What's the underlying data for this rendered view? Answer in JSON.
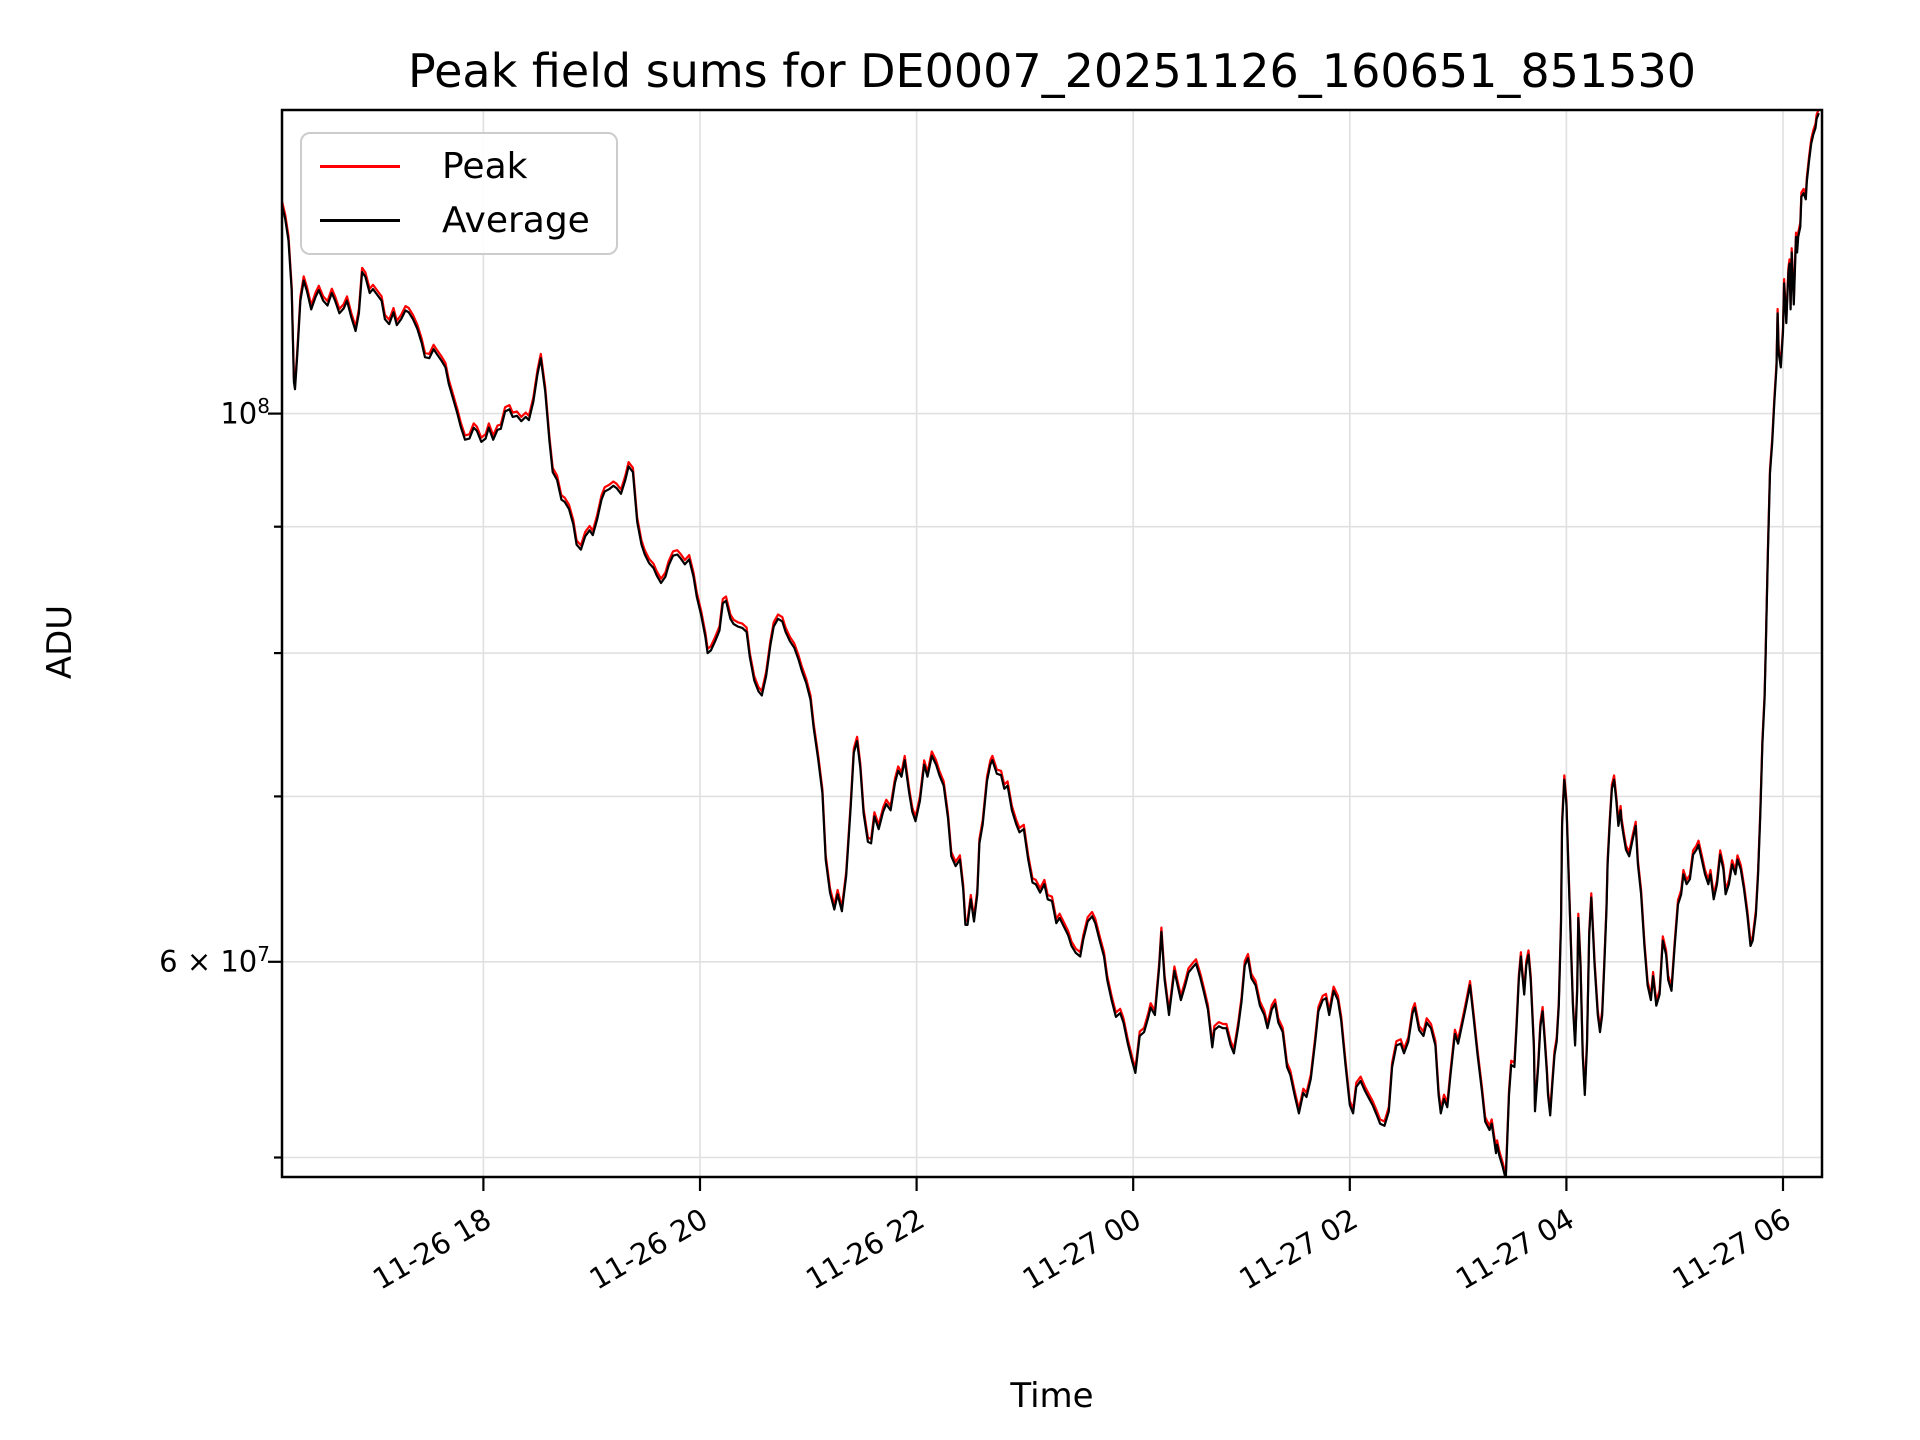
{
  "title": "Peak field sums for DE0007_20251126_160651_851530",
  "axes": {
    "xlabel": "Time",
    "ylabel": "ADU",
    "x_ticks": [
      {
        "hour": 18,
        "label": "11-26 18"
      },
      {
        "hour": 20,
        "label": "11-26 20"
      },
      {
        "hour": 22,
        "label": "11-26 22"
      },
      {
        "hour": 24,
        "label": "11-27 00"
      },
      {
        "hour": 26,
        "label": "11-27 02"
      },
      {
        "hour": 28,
        "label": "11-27 04"
      },
      {
        "hour": 30,
        "label": "11-27 06"
      }
    ],
    "y_ticks_major": [
      {
        "value": 10,
        "prefix": "",
        "mantissa": "10",
        "exponent": "8"
      },
      {
        "value": 6,
        "prefix": "6 × ",
        "mantissa": "10",
        "exponent": "7"
      }
    ],
    "y_ticks_minor": [
      9,
      8,
      7,
      5
    ],
    "y_gridlines": [
      10,
      9,
      8,
      7,
      6,
      5
    ]
  },
  "legend": {
    "entries": [
      {
        "label": "Peak",
        "color": "#ff0000"
      },
      {
        "label": "Average",
        "color": "#000000"
      }
    ]
  },
  "colors": {
    "peak": "#ff0000",
    "average": "#000000",
    "grid": "#e0e0e0",
    "legend_border": "#cccccc"
  },
  "chart_data": {
    "type": "line",
    "title": "Peak field sums for DE0007_20251126_160651_851530",
    "xlabel": "Time",
    "ylabel": "ADU",
    "x_unit": "hours since 2025-11-26 00:00 (24+ = 11-27)",
    "y_unit": "1e7 ADU, log scale",
    "xlim": [
      16.14,
      30.36
    ],
    "ylim": [
      4.91,
      13.27
    ],
    "grid": "both",
    "legend_position": "upper left",
    "x_hours": [
      16.14,
      16.17,
      16.2,
      16.23,
      16.25,
      16.26,
      16.28,
      16.31,
      16.34,
      16.37,
      16.41,
      16.45,
      16.48,
      16.52,
      16.56,
      16.6,
      16.63,
      16.67,
      16.71,
      16.74,
      16.78,
      16.82,
      16.85,
      16.88,
      16.91,
      16.95,
      16.98,
      17.02,
      17.06,
      17.09,
      17.13,
      17.17,
      17.2,
      17.24,
      17.28,
      17.31,
      17.35,
      17.39,
      17.43,
      17.46,
      17.5,
      17.54,
      17.57,
      17.61,
      17.65,
      17.68,
      17.72,
      17.76,
      17.79,
      17.83,
      17.87,
      17.91,
      17.94,
      17.98,
      18.02,
      18.05,
      18.09,
      18.13,
      18.16,
      18.2,
      18.24,
      18.27,
      18.31,
      18.35,
      18.39,
      18.42,
      18.46,
      18.5,
      18.53,
      18.57,
      18.61,
      18.64,
      18.68,
      18.72,
      18.75,
      18.79,
      18.83,
      18.86,
      18.9,
      18.94,
      18.98,
      19.01,
      19.05,
      19.09,
      19.12,
      19.16,
      19.2,
      19.23,
      19.27,
      19.31,
      19.34,
      19.38,
      19.42,
      19.46,
      19.49,
      19.53,
      19.57,
      19.6,
      19.64,
      19.68,
      19.71,
      19.75,
      19.79,
      19.82,
      19.86,
      19.9,
      19.94,
      19.97,
      20.01,
      20.05,
      20.07,
      20.1,
      20.14,
      20.18,
      20.21,
      20.24,
      20.28,
      20.31,
      20.35,
      20.39,
      20.43,
      20.46,
      20.5,
      20.54,
      20.57,
      20.61,
      20.65,
      20.68,
      20.72,
      20.76,
      20.79,
      20.83,
      20.87,
      20.91,
      20.94,
      20.98,
      21.02,
      21.05,
      21.09,
      21.13,
      21.16,
      21.2,
      21.24,
      21.27,
      21.31,
      21.35,
      21.39,
      21.42,
      21.45,
      21.48,
      21.51,
      21.55,
      21.58,
      21.61,
      21.65,
      21.69,
      21.72,
      21.76,
      21.8,
      21.83,
      21.86,
      21.89,
      21.93,
      21.96,
      21.99,
      22.03,
      22.07,
      22.1,
      22.14,
      22.18,
      22.21,
      22.25,
      22.29,
      22.32,
      22.36,
      22.4,
      22.43,
      22.45,
      22.47,
      22.5,
      22.53,
      22.56,
      22.58,
      22.61,
      22.65,
      22.68,
      22.7,
      22.74,
      22.78,
      22.81,
      22.84,
      22.88,
      22.92,
      22.95,
      22.99,
      23.03,
      23.07,
      23.1,
      23.14,
      23.18,
      23.21,
      23.25,
      23.29,
      23.32,
      23.36,
      23.4,
      23.43,
      23.47,
      23.51,
      23.54,
      23.58,
      23.62,
      23.65,
      23.69,
      23.73,
      23.76,
      23.8,
      23.84,
      23.88,
      23.91,
      23.95,
      23.99,
      24.02,
      24.06,
      24.1,
      24.14,
      24.16,
      24.2,
      24.24,
      24.26,
      24.29,
      24.33,
      24.36,
      24.38,
      24.41,
      24.44,
      24.48,
      24.51,
      24.55,
      24.58,
      24.62,
      24.65,
      24.69,
      24.73,
      24.75,
      24.79,
      24.83,
      24.86,
      24.9,
      24.93,
      24.97,
      25.0,
      25.03,
      25.06,
      25.09,
      25.13,
      25.17,
      25.21,
      25.24,
      25.28,
      25.31,
      25.34,
      25.38,
      25.42,
      25.45,
      25.49,
      25.53,
      25.57,
      25.6,
      25.64,
      25.68,
      25.71,
      25.75,
      25.78,
      25.81,
      25.85,
      25.89,
      25.92,
      25.96,
      26.0,
      26.03,
      26.06,
      26.1,
      26.14,
      26.17,
      26.21,
      26.25,
      26.28,
      26.32,
      26.36,
      26.39,
      26.43,
      26.47,
      26.5,
      26.54,
      26.58,
      26.6,
      26.64,
      26.68,
      26.71,
      26.75,
      26.79,
      26.82,
      26.84,
      26.87,
      26.9,
      26.93,
      26.97,
      27.0,
      27.03,
      27.07,
      27.11,
      27.14,
      27.18,
      27.22,
      27.25,
      27.29,
      27.31,
      27.33,
      27.35,
      27.36,
      27.38,
      27.41,
      27.44,
      27.47,
      27.49,
      27.52,
      27.54,
      27.56,
      27.58,
      27.59,
      27.61,
      27.63,
      27.65,
      27.67,
      27.7,
      27.71,
      27.74,
      27.76,
      27.78,
      27.8,
      27.82,
      27.83,
      27.85,
      27.87,
      27.89,
      27.91,
      27.93,
      27.95,
      27.96,
      27.98,
      28.0,
      28.02,
      28.04,
      28.06,
      28.08,
      28.1,
      28.11,
      28.13,
      28.15,
      28.17,
      28.19,
      28.21,
      28.23,
      28.24,
      28.26,
      28.29,
      28.31,
      28.33,
      28.35,
      28.37,
      28.38,
      28.4,
      28.42,
      28.44,
      28.46,
      28.48,
      28.5,
      28.51,
      28.53,
      28.55,
      28.58,
      28.61,
      28.64,
      28.66,
      28.69,
      28.72,
      28.75,
      28.78,
      28.8,
      28.83,
      28.86,
      28.89,
      28.92,
      28.94,
      28.97,
      29.0,
      29.03,
      29.06,
      29.08,
      29.11,
      29.14,
      29.17,
      29.2,
      29.22,
      29.25,
      29.28,
      29.31,
      29.33,
      29.36,
      29.39,
      29.42,
      29.45,
      29.47,
      29.5,
      29.53,
      29.56,
      29.58,
      29.61,
      29.64,
      29.67,
      29.7,
      29.72,
      29.75,
      29.77,
      29.79,
      29.81,
      29.83,
      29.84,
      29.86,
      29.88,
      29.9,
      29.92,
      29.94,
      29.95,
      29.96,
      29.98,
      30.0,
      30.01,
      30.03,
      30.05,
      30.06,
      30.07,
      30.08,
      30.1,
      30.12,
      30.13,
      30.14,
      30.16,
      30.17,
      30.19,
      30.21,
      30.22,
      30.24,
      30.26,
      30.28,
      30.3,
      30.31,
      30.33
    ],
    "series": [
      {
        "name": "Peak",
        "color": "#ff0000",
        "ratio_vs_average": 1.004,
        "values_note": "Red line hugs the black Average line; visible only as thin fringes ~0.4% above it at spike tips"
      },
      {
        "name": "Average",
        "color": "#000000",
        "values": [
          12.14,
          11.99,
          11.75,
          11.21,
          10.3,
          10.23,
          10.55,
          11.11,
          11.32,
          11.21,
          11.02,
          11.15,
          11.22,
          11.11,
          11.06,
          11.19,
          11.11,
          10.98,
          11.03,
          11.11,
          10.94,
          10.8,
          10.98,
          11.41,
          11.36,
          11.19,
          11.23,
          11.17,
          11.11,
          10.92,
          10.87,
          10.99,
          10.86,
          10.92,
          11.01,
          10.99,
          10.92,
          10.82,
          10.68,
          10.54,
          10.53,
          10.62,
          10.57,
          10.51,
          10.44,
          10.28,
          10.14,
          10.0,
          9.88,
          9.76,
          9.77,
          9.87,
          9.84,
          9.74,
          9.77,
          9.87,
          9.76,
          9.85,
          9.86,
          10.02,
          10.04,
          9.97,
          9.98,
          9.93,
          9.97,
          9.94,
          10.11,
          10.38,
          10.53,
          10.21,
          9.74,
          9.47,
          9.4,
          9.23,
          9.21,
          9.15,
          9.02,
          8.85,
          8.81,
          8.92,
          8.97,
          8.93,
          9.06,
          9.23,
          9.3,
          9.32,
          9.35,
          9.33,
          9.28,
          9.4,
          9.52,
          9.47,
          9.04,
          8.85,
          8.77,
          8.7,
          8.66,
          8.6,
          8.54,
          8.59,
          8.68,
          8.76,
          8.77,
          8.74,
          8.69,
          8.73,
          8.59,
          8.43,
          8.29,
          8.12,
          8.0,
          8.02,
          8.09,
          8.17,
          8.38,
          8.4,
          8.26,
          8.22,
          8.2,
          8.19,
          8.16,
          7.97,
          7.8,
          7.72,
          7.69,
          7.83,
          8.06,
          8.2,
          8.26,
          8.24,
          8.16,
          8.09,
          8.04,
          7.95,
          7.87,
          7.78,
          7.66,
          7.46,
          7.25,
          7.02,
          6.6,
          6.4,
          6.3,
          6.39,
          6.29,
          6.5,
          6.92,
          7.29,
          7.37,
          7.19,
          6.89,
          6.71,
          6.7,
          6.87,
          6.79,
          6.9,
          6.95,
          6.91,
          7.09,
          7.17,
          7.13,
          7.24,
          7.03,
          6.9,
          6.84,
          6.97,
          7.21,
          7.13,
          7.27,
          7.21,
          7.14,
          7.07,
          6.86,
          6.62,
          6.56,
          6.6,
          6.42,
          6.21,
          6.21,
          6.36,
          6.23,
          6.39,
          6.7,
          6.82,
          7.1,
          7.21,
          7.24,
          7.15,
          7.14,
          7.05,
          7.07,
          6.91,
          6.82,
          6.77,
          6.79,
          6.6,
          6.46,
          6.45,
          6.4,
          6.45,
          6.36,
          6.35,
          6.22,
          6.25,
          6.2,
          6.15,
          6.09,
          6.05,
          6.03,
          6.13,
          6.23,
          6.26,
          6.22,
          6.12,
          6.03,
          5.9,
          5.79,
          5.7,
          5.72,
          5.67,
          5.56,
          5.47,
          5.41,
          5.6,
          5.62,
          5.7,
          5.75,
          5.71,
          5.97,
          6.17,
          5.9,
          5.71,
          5.85,
          5.95,
          5.87,
          5.79,
          5.87,
          5.94,
          5.97,
          5.99,
          5.91,
          5.84,
          5.74,
          5.54,
          5.63,
          5.65,
          5.64,
          5.64,
          5.55,
          5.51,
          5.65,
          5.78,
          5.98,
          6.02,
          5.91,
          5.87,
          5.76,
          5.71,
          5.64,
          5.74,
          5.77,
          5.67,
          5.62,
          5.44,
          5.4,
          5.3,
          5.21,
          5.31,
          5.29,
          5.38,
          5.57,
          5.73,
          5.79,
          5.8,
          5.71,
          5.84,
          5.79,
          5.68,
          5.45,
          5.25,
          5.21,
          5.34,
          5.37,
          5.32,
          5.29,
          5.25,
          5.2,
          5.16,
          5.15,
          5.22,
          5.44,
          5.55,
          5.56,
          5.51,
          5.57,
          5.72,
          5.75,
          5.63,
          5.6,
          5.67,
          5.64,
          5.55,
          5.3,
          5.21,
          5.28,
          5.24,
          5.4,
          5.61,
          5.56,
          5.64,
          5.75,
          5.87,
          5.71,
          5.5,
          5.32,
          5.17,
          5.13,
          5.16,
          5.09,
          5.02,
          5.06,
          5.01,
          4.96,
          4.9,
          5.3,
          5.45,
          5.44,
          5.65,
          5.9,
          6.03,
          5.95,
          5.82,
          5.98,
          6.04,
          5.9,
          5.54,
          5.22,
          5.45,
          5.65,
          5.73,
          5.57,
          5.41,
          5.3,
          5.2,
          5.35,
          5.5,
          5.57,
          5.76,
          6.21,
          6.82,
          7.11,
          6.95,
          6.51,
          6.13,
          5.76,
          5.55,
          5.84,
          6.25,
          5.98,
          5.5,
          5.3,
          5.55,
          6.15,
          6.37,
          6.24,
          5.98,
          5.71,
          5.62,
          5.71,
          5.98,
          6.3,
          6.57,
          6.82,
          7.05,
          7.11,
          6.98,
          6.81,
          6.91,
          6.83,
          6.74,
          6.66,
          6.62,
          6.72,
          6.81,
          6.57,
          6.39,
          6.09,
          5.87,
          5.79,
          5.92,
          5.76,
          5.82,
          6.12,
          6.04,
          5.9,
          5.84,
          6.09,
          6.33,
          6.39,
          6.51,
          6.45,
          6.48,
          6.63,
          6.66,
          6.69,
          6.6,
          6.51,
          6.45,
          6.51,
          6.36,
          6.45,
          6.63,
          6.54,
          6.39,
          6.45,
          6.57,
          6.51,
          6.6,
          6.54,
          6.42,
          6.27,
          6.09,
          6.12,
          6.27,
          6.51,
          6.88,
          7.35,
          7.67,
          8.0,
          8.78,
          9.46,
          9.73,
          10.1,
          10.44,
          10.98,
          10.58,
          10.44,
          10.79,
          11.29,
          10.88,
          11.41,
          11.5,
          11.02,
          11.62,
          11.07,
          11.79,
          11.62,
          11.79,
          11.9,
          12.24,
          12.28,
          12.21,
          12.41,
          12.65,
          12.86,
          12.97,
          13.05,
          13.16,
          13.23
        ]
      }
    ]
  }
}
